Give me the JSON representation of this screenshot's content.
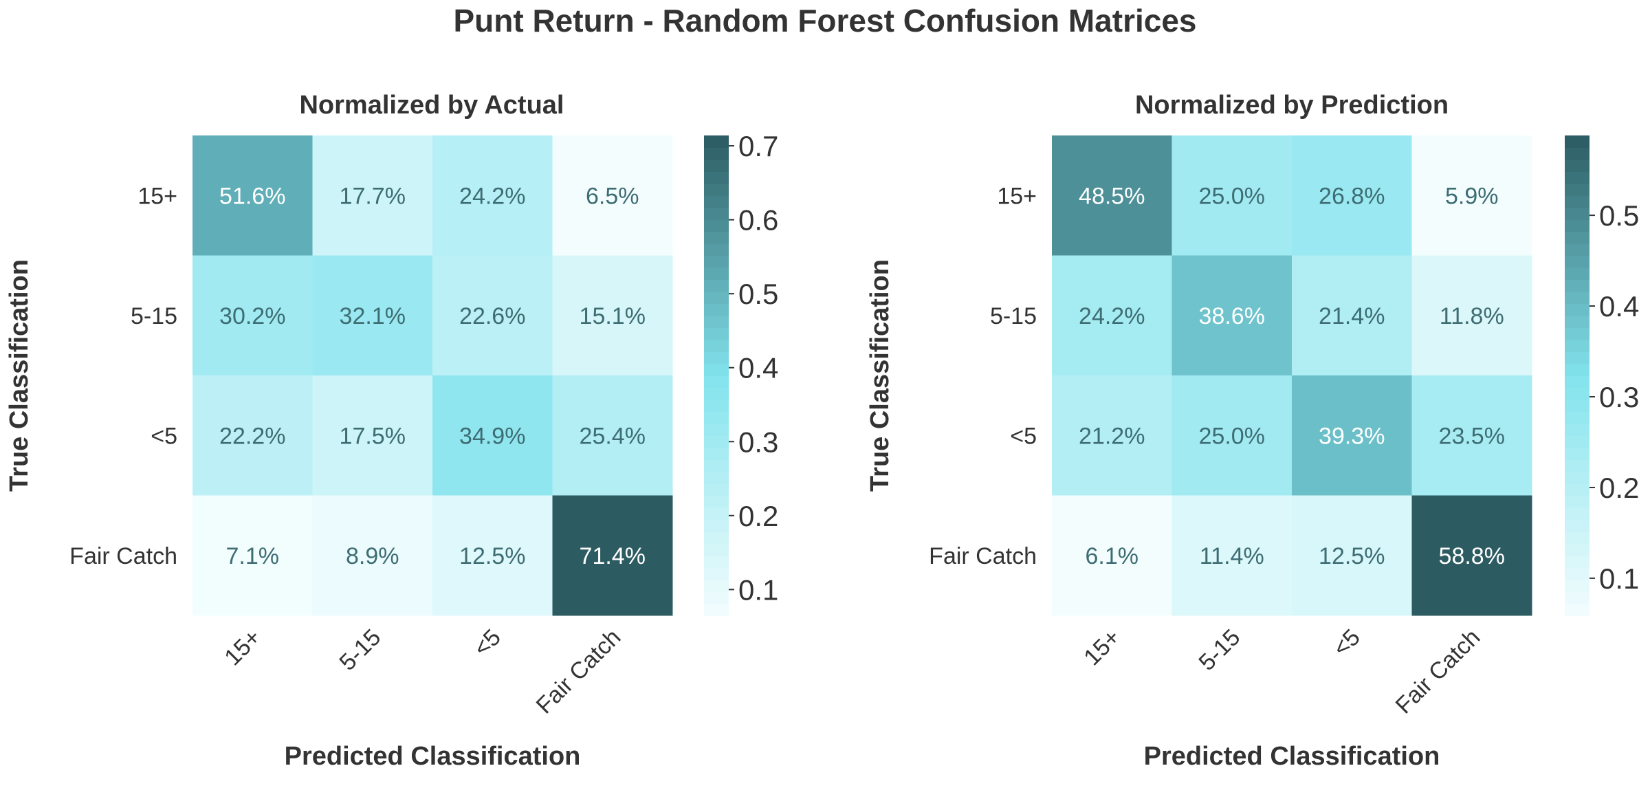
{
  "title": "Punt Return - Random Forest Confusion Matrices",
  "chart_data": [
    {
      "type": "heatmap",
      "title": "Normalized by Actual",
      "xlabel": "Predicted Classification",
      "ylabel": "True Classification",
      "row_labels": [
        "15+",
        "5-15",
        "<5",
        "Fair Catch"
      ],
      "col_labels": [
        "15+",
        "5-15",
        "<5",
        "Fair Catch"
      ],
      "values": [
        [
          0.516,
          0.177,
          0.242,
          0.065
        ],
        [
          0.302,
          0.321,
          0.226,
          0.151
        ],
        [
          0.222,
          0.175,
          0.349,
          0.254
        ],
        [
          0.071,
          0.089,
          0.125,
          0.714
        ]
      ],
      "annotations": [
        [
          "51.6%",
          "17.7%",
          "24.2%",
          "6.5%"
        ],
        [
          "30.2%",
          "32.1%",
          "22.6%",
          "15.1%"
        ],
        [
          "22.2%",
          "17.5%",
          "34.9%",
          "25.4%"
        ],
        [
          "7.1%",
          "8.9%",
          "12.5%",
          "71.4%"
        ]
      ],
      "colorbar": {
        "vmin": 0.065,
        "vmax": 0.714,
        "ticks": [
          "0.1",
          "0.2",
          "0.3",
          "0.4",
          "0.5",
          "0.6",
          "0.7"
        ]
      }
    },
    {
      "type": "heatmap",
      "title": "Normalized by Prediction",
      "xlabel": "Predicted Classification",
      "ylabel": "True Classification",
      "row_labels": [
        "15+",
        "5-15",
        "<5",
        "Fair Catch"
      ],
      "col_labels": [
        "15+",
        "5-15",
        "<5",
        "Fair Catch"
      ],
      "values": [
        [
          0.485,
          0.25,
          0.268,
          0.059
        ],
        [
          0.242,
          0.386,
          0.214,
          0.118
        ],
        [
          0.212,
          0.25,
          0.393,
          0.235
        ],
        [
          0.061,
          0.114,
          0.125,
          0.588
        ]
      ],
      "annotations": [
        [
          "48.5%",
          "25.0%",
          "26.8%",
          "5.9%"
        ],
        [
          "24.2%",
          "38.6%",
          "21.4%",
          "11.8%"
        ],
        [
          "21.2%",
          "25.0%",
          "39.3%",
          "23.5%"
        ],
        [
          "6.1%",
          "11.4%",
          "12.5%",
          "58.8%"
        ]
      ],
      "colorbar": {
        "vmin": 0.059,
        "vmax": 0.588,
        "ticks": [
          "0.1",
          "0.2",
          "0.3",
          "0.4",
          "0.5"
        ]
      }
    }
  ],
  "colors": {
    "low": "#f4fdfe",
    "mid": "#82e3ed",
    "high": "#2c5b62",
    "text_dark": "#3d6d73",
    "text_light": "#ffffff"
  }
}
